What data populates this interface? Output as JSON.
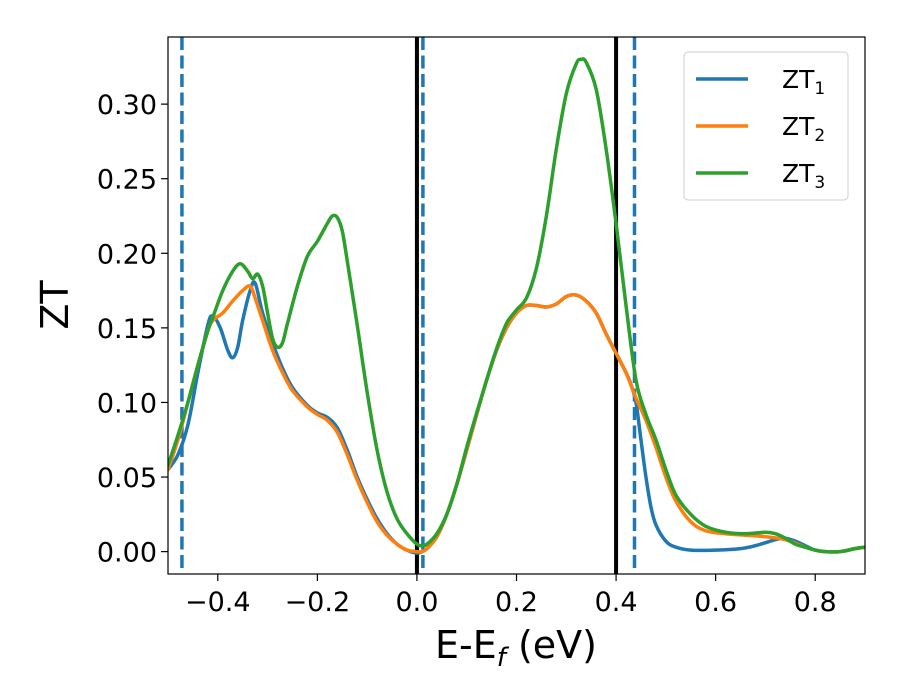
{
  "chart_data": {
    "type": "line",
    "xlabel_main": "E-E",
    "xlabel_sub": "f",
    "xlabel_unit": " (eV)",
    "ylabel": "ZT",
    "xlim": [
      -0.5,
      0.9
    ],
    "ylim": [
      -0.015,
      0.345
    ],
    "xticks": [
      -0.4,
      -0.2,
      0.0,
      0.2,
      0.4,
      0.6,
      0.8
    ],
    "xtick_labels": [
      "−0.4",
      "−0.2",
      "0.0",
      "0.2",
      "0.4",
      "0.6",
      "0.8"
    ],
    "yticks": [
      0.0,
      0.05,
      0.1,
      0.15,
      0.2,
      0.25,
      0.3
    ],
    "ytick_labels": [
      "0.00",
      "0.05",
      "0.10",
      "0.15",
      "0.20",
      "0.25",
      "0.30"
    ],
    "legend_position": "top-right",
    "vlines": [
      {
        "x": -0.472,
        "style": "dashed",
        "color": "#1f77b4"
      },
      {
        "x": 0.0,
        "style": "solid",
        "color": "#000000"
      },
      {
        "x": 0.012,
        "style": "dashed",
        "color": "#1f77b4"
      },
      {
        "x": 0.4,
        "style": "solid",
        "color": "#000000"
      },
      {
        "x": 0.437,
        "style": "dashed",
        "color": "#1f77b4"
      }
    ],
    "series": [
      {
        "legend_main": "ZT",
        "legend_sub": "1",
        "color": "#1f77b4",
        "points": [
          [
            -0.5,
            0.055
          ],
          [
            -0.48,
            0.065
          ],
          [
            -0.46,
            0.085
          ],
          [
            -0.44,
            0.12
          ],
          [
            -0.42,
            0.152
          ],
          [
            -0.41,
            0.158
          ],
          [
            -0.395,
            0.15
          ],
          [
            -0.38,
            0.135
          ],
          [
            -0.37,
            0.13
          ],
          [
            -0.36,
            0.137
          ],
          [
            -0.35,
            0.155
          ],
          [
            -0.335,
            0.175
          ],
          [
            -0.325,
            0.18
          ],
          [
            -0.31,
            0.16
          ],
          [
            -0.29,
            0.14
          ],
          [
            -0.27,
            0.123
          ],
          [
            -0.25,
            0.11
          ],
          [
            -0.22,
            0.098
          ],
          [
            -0.2,
            0.093
          ],
          [
            -0.18,
            0.09
          ],
          [
            -0.16,
            0.083
          ],
          [
            -0.14,
            0.068
          ],
          [
            -0.12,
            0.05
          ],
          [
            -0.1,
            0.035
          ],
          [
            -0.08,
            0.022
          ],
          [
            -0.06,
            0.012
          ],
          [
            -0.04,
            0.005
          ],
          [
            -0.02,
            0.001
          ],
          [
            0.0,
            -0.001
          ],
          [
            0.01,
            0.0
          ],
          [
            0.02,
            0.002
          ],
          [
            0.04,
            0.01
          ],
          [
            0.06,
            0.025
          ],
          [
            0.08,
            0.045
          ],
          [
            0.1,
            0.068
          ],
          [
            0.12,
            0.092
          ],
          [
            0.14,
            0.115
          ],
          [
            0.16,
            0.135
          ],
          [
            0.18,
            0.15
          ],
          [
            0.2,
            0.16
          ],
          [
            0.22,
            0.165
          ],
          [
            0.24,
            0.165
          ],
          [
            0.26,
            0.164
          ],
          [
            0.28,
            0.166
          ],
          [
            0.3,
            0.171
          ],
          [
            0.32,
            0.172
          ],
          [
            0.34,
            0.168
          ],
          [
            0.36,
            0.16
          ],
          [
            0.38,
            0.146
          ],
          [
            0.4,
            0.133
          ],
          [
            0.42,
            0.12
          ],
          [
            0.43,
            0.112
          ],
          [
            0.44,
            0.1
          ],
          [
            0.45,
            0.075
          ],
          [
            0.46,
            0.05
          ],
          [
            0.47,
            0.03
          ],
          [
            0.48,
            0.018
          ],
          [
            0.5,
            0.007
          ],
          [
            0.52,
            0.003
          ],
          [
            0.55,
            0.001
          ],
          [
            0.6,
            0.001
          ],
          [
            0.65,
            0.002
          ],
          [
            0.68,
            0.004
          ],
          [
            0.72,
            0.008
          ],
          [
            0.74,
            0.009
          ],
          [
            0.76,
            0.007
          ],
          [
            0.78,
            0.004
          ],
          [
            0.8,
            0.001
          ],
          [
            0.82,
            0.0
          ],
          [
            0.85,
            0.0
          ],
          [
            0.88,
            0.002
          ],
          [
            0.9,
            0.003
          ]
        ]
      },
      {
        "legend_main": "ZT",
        "legend_sub": "2",
        "color": "#ff7f0e",
        "points": [
          [
            -0.5,
            0.055
          ],
          [
            -0.48,
            0.075
          ],
          [
            -0.46,
            0.1
          ],
          [
            -0.44,
            0.125
          ],
          [
            -0.42,
            0.148
          ],
          [
            -0.41,
            0.155
          ],
          [
            -0.39,
            0.16
          ],
          [
            -0.37,
            0.168
          ],
          [
            -0.35,
            0.175
          ],
          [
            -0.335,
            0.178
          ],
          [
            -0.325,
            0.17
          ],
          [
            -0.31,
            0.155
          ],
          [
            -0.29,
            0.135
          ],
          [
            -0.27,
            0.12
          ],
          [
            -0.25,
            0.108
          ],
          [
            -0.22,
            0.097
          ],
          [
            -0.2,
            0.092
          ],
          [
            -0.18,
            0.088
          ],
          [
            -0.16,
            0.08
          ],
          [
            -0.14,
            0.065
          ],
          [
            -0.12,
            0.048
          ],
          [
            -0.1,
            0.033
          ],
          [
            -0.08,
            0.02
          ],
          [
            -0.06,
            0.011
          ],
          [
            -0.04,
            0.005
          ],
          [
            -0.02,
            0.001
          ],
          [
            0.0,
            0.0
          ],
          [
            0.01,
            0.0
          ],
          [
            0.02,
            0.002
          ],
          [
            0.04,
            0.01
          ],
          [
            0.06,
            0.025
          ],
          [
            0.08,
            0.045
          ],
          [
            0.1,
            0.068
          ],
          [
            0.12,
            0.092
          ],
          [
            0.14,
            0.115
          ],
          [
            0.16,
            0.135
          ],
          [
            0.18,
            0.15
          ],
          [
            0.2,
            0.16
          ],
          [
            0.22,
            0.165
          ],
          [
            0.24,
            0.165
          ],
          [
            0.26,
            0.164
          ],
          [
            0.28,
            0.166
          ],
          [
            0.3,
            0.171
          ],
          [
            0.32,
            0.172
          ],
          [
            0.34,
            0.168
          ],
          [
            0.36,
            0.16
          ],
          [
            0.38,
            0.146
          ],
          [
            0.4,
            0.133
          ],
          [
            0.42,
            0.12
          ],
          [
            0.44,
            0.103
          ],
          [
            0.46,
            0.088
          ],
          [
            0.48,
            0.07
          ],
          [
            0.5,
            0.05
          ],
          [
            0.52,
            0.034
          ],
          [
            0.55,
            0.02
          ],
          [
            0.58,
            0.014
          ],
          [
            0.62,
            0.012
          ],
          [
            0.66,
            0.011
          ],
          [
            0.7,
            0.01
          ],
          [
            0.74,
            0.008
          ],
          [
            0.78,
            0.003
          ],
          [
            0.8,
            0.001
          ],
          [
            0.82,
            0.0
          ],
          [
            0.85,
            0.0
          ],
          [
            0.88,
            0.002
          ],
          [
            0.9,
            0.003
          ]
        ]
      },
      {
        "legend_main": "ZT",
        "legend_sub": "3",
        "color": "#2ca02c",
        "points": [
          [
            -0.5,
            0.058
          ],
          [
            -0.48,
            0.078
          ],
          [
            -0.46,
            0.1
          ],
          [
            -0.44,
            0.125
          ],
          [
            -0.42,
            0.148
          ],
          [
            -0.41,
            0.157
          ],
          [
            -0.39,
            0.175
          ],
          [
            -0.37,
            0.188
          ],
          [
            -0.355,
            0.193
          ],
          [
            -0.34,
            0.188
          ],
          [
            -0.33,
            0.183
          ],
          [
            -0.32,
            0.186
          ],
          [
            -0.31,
            0.178
          ],
          [
            -0.3,
            0.16
          ],
          [
            -0.29,
            0.143
          ],
          [
            -0.28,
            0.137
          ],
          [
            -0.27,
            0.14
          ],
          [
            -0.26,
            0.153
          ],
          [
            -0.24,
            0.178
          ],
          [
            -0.22,
            0.198
          ],
          [
            -0.2,
            0.208
          ],
          [
            -0.18,
            0.22
          ],
          [
            -0.17,
            0.225
          ],
          [
            -0.16,
            0.224
          ],
          [
            -0.15,
            0.215
          ],
          [
            -0.14,
            0.195
          ],
          [
            -0.12,
            0.152
          ],
          [
            -0.1,
            0.107
          ],
          [
            -0.08,
            0.068
          ],
          [
            -0.06,
            0.04
          ],
          [
            -0.04,
            0.022
          ],
          [
            -0.02,
            0.012
          ],
          [
            0.0,
            0.005
          ],
          [
            0.01,
            0.004
          ],
          [
            0.02,
            0.005
          ],
          [
            0.04,
            0.012
          ],
          [
            0.06,
            0.025
          ],
          [
            0.08,
            0.045
          ],
          [
            0.1,
            0.07
          ],
          [
            0.12,
            0.093
          ],
          [
            0.14,
            0.115
          ],
          [
            0.16,
            0.136
          ],
          [
            0.18,
            0.153
          ],
          [
            0.2,
            0.162
          ],
          [
            0.22,
            0.17
          ],
          [
            0.24,
            0.19
          ],
          [
            0.26,
            0.225
          ],
          [
            0.28,
            0.27
          ],
          [
            0.3,
            0.307
          ],
          [
            0.32,
            0.327
          ],
          [
            0.33,
            0.33
          ],
          [
            0.34,
            0.328
          ],
          [
            0.36,
            0.31
          ],
          [
            0.38,
            0.27
          ],
          [
            0.4,
            0.22
          ],
          [
            0.42,
            0.165
          ],
          [
            0.44,
            0.115
          ],
          [
            0.46,
            0.092
          ],
          [
            0.48,
            0.075
          ],
          [
            0.5,
            0.055
          ],
          [
            0.52,
            0.038
          ],
          [
            0.55,
            0.025
          ],
          [
            0.58,
            0.017
          ],
          [
            0.62,
            0.013
          ],
          [
            0.66,
            0.012
          ],
          [
            0.7,
            0.013
          ],
          [
            0.72,
            0.012
          ],
          [
            0.74,
            0.009
          ],
          [
            0.76,
            0.005
          ],
          [
            0.78,
            0.003
          ],
          [
            0.8,
            0.001
          ],
          [
            0.82,
            0.0
          ],
          [
            0.85,
            0.0
          ],
          [
            0.88,
            0.002
          ],
          [
            0.9,
            0.003
          ]
        ]
      }
    ]
  }
}
